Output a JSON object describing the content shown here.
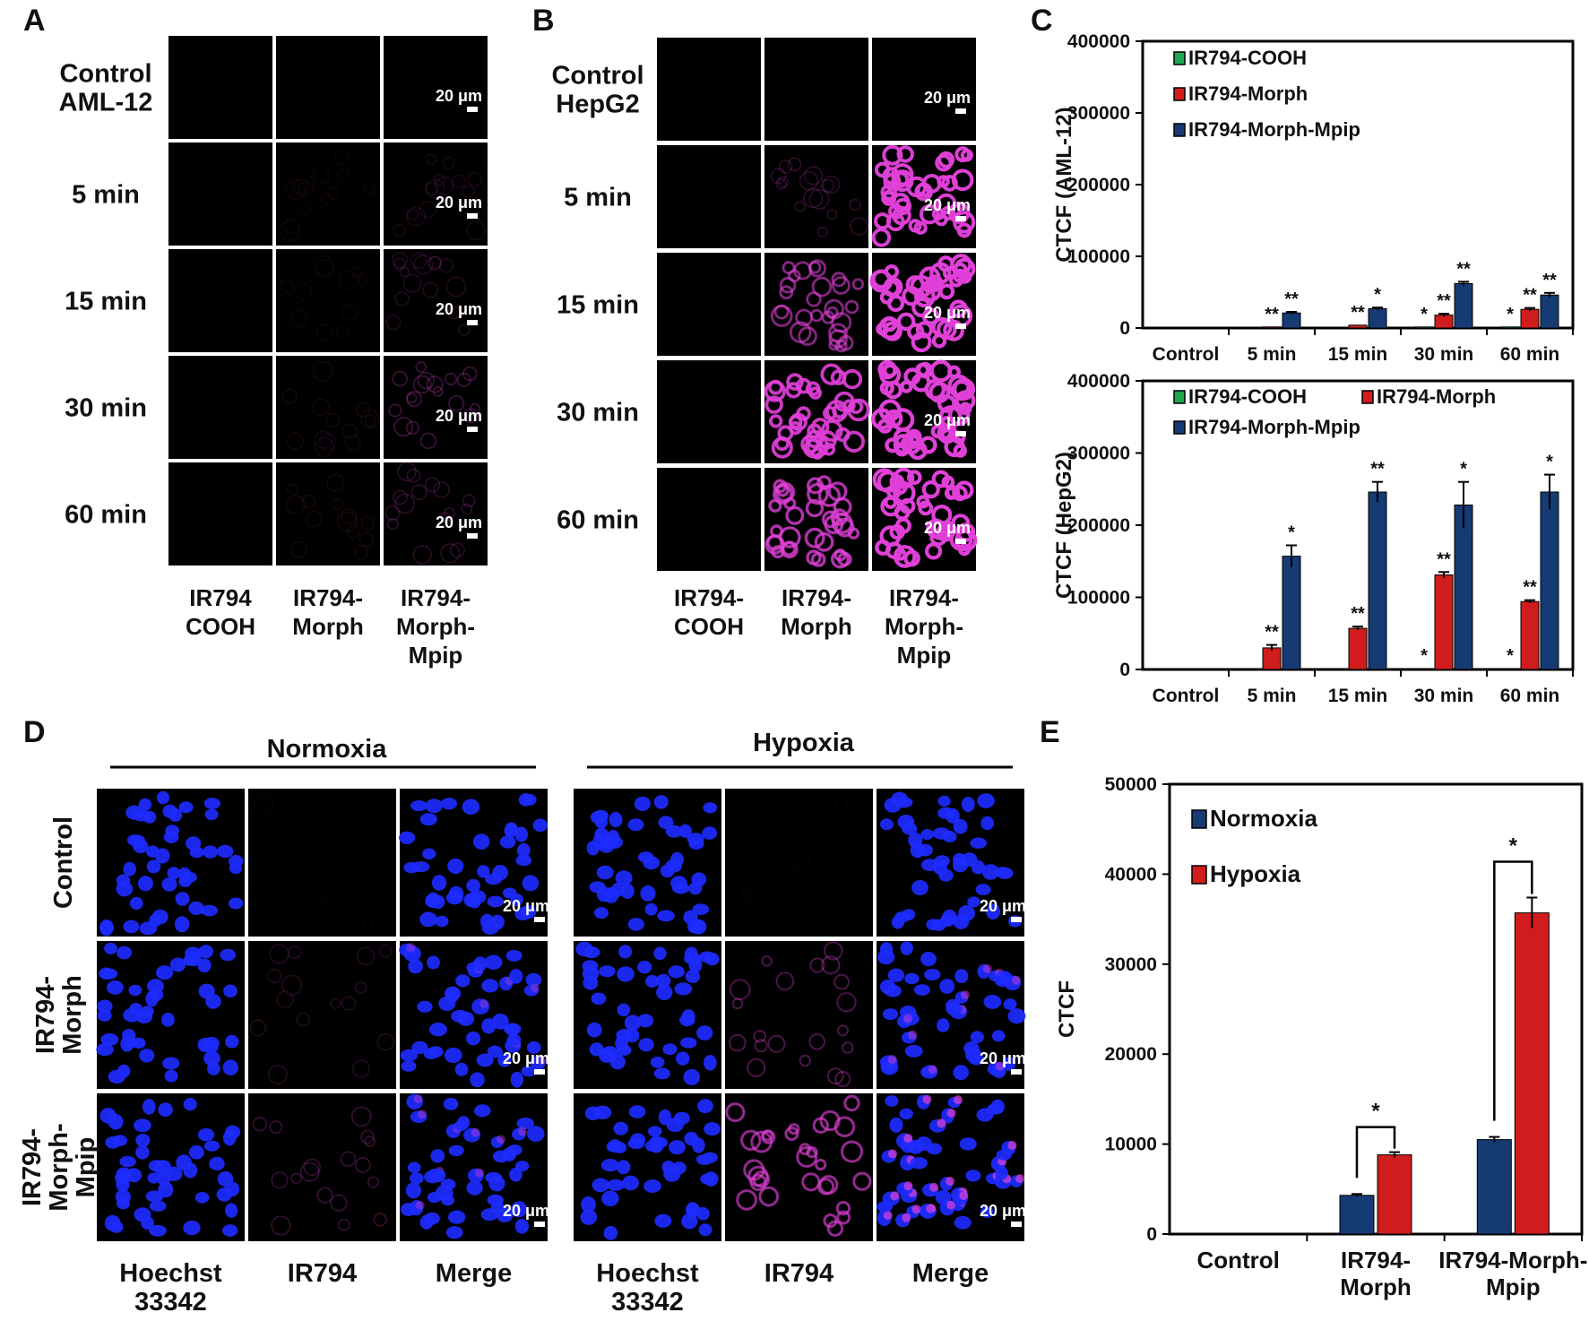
{
  "panels": {
    "A": {
      "letter": "A",
      "row_labels": [
        "Control AML-12",
        "5 min",
        "15 min",
        "30 min",
        "60 min"
      ],
      "row_label_lines": [
        [
          "Control",
          "AML-12"
        ],
        [
          "5 min"
        ],
        [
          "15 min"
        ],
        [
          "30 min"
        ],
        [
          "60 min"
        ]
      ],
      "col_label_lines": [
        [
          "IR794",
          "COOH"
        ],
        [
          "IR794-",
          "Morph"
        ],
        [
          "IR794-",
          "Morph-",
          "Mpip"
        ]
      ],
      "scale_bar": "20 μm",
      "intensity": [
        [
          0,
          0,
          0
        ],
        [
          0,
          0.06,
          0.1
        ],
        [
          0,
          0.05,
          0.12
        ],
        [
          0,
          0.08,
          0.2
        ],
        [
          0,
          0.08,
          0.15
        ]
      ]
    },
    "B": {
      "letter": "B",
      "row_label_lines": [
        [
          "Control",
          "HepG2"
        ],
        [
          "5 min"
        ],
        [
          "15 min"
        ],
        [
          "30 min"
        ],
        [
          "60 min"
        ]
      ],
      "col_label_lines": [
        [
          "IR794-",
          "COOH"
        ],
        [
          "IR794-",
          "Morph"
        ],
        [
          "IR794-",
          "Morph-",
          "Mpip"
        ]
      ],
      "scale_bar": "20 μm",
      "intensity": [
        [
          0,
          0,
          0
        ],
        [
          0,
          0.15,
          0.75
        ],
        [
          0,
          0.45,
          0.8
        ],
        [
          0,
          0.7,
          0.85
        ],
        [
          0,
          0.6,
          0.8
        ]
      ]
    },
    "C": {
      "letter": "C"
    },
    "D": {
      "letter": "D",
      "group_titles": [
        "Normoxia",
        "Hypoxia"
      ],
      "row_label_lines": [
        [
          "Control"
        ],
        [
          "IR794-",
          "Morph"
        ],
        [
          "IR794-",
          "Morph-",
          "Mpip"
        ]
      ],
      "col_label_lines": [
        [
          "Hoechst",
          "33342"
        ],
        [
          "IR794"
        ],
        [
          "Merge"
        ]
      ],
      "scale_bar": "20 μm",
      "ir_intensity": {
        "normoxia": [
          0.03,
          0.12,
          0.18
        ],
        "hypoxia": [
          0.03,
          0.25,
          0.5
        ]
      }
    },
    "E": {
      "letter": "E"
    }
  },
  "colors": {
    "cooh": "#1fa84d",
    "morph": "#d01c1c",
    "mpip": "#163a73",
    "normoxia": "#163a73",
    "hypoxia": "#d01c1c",
    "nuclei": "#1d2bff",
    "ir794": "#e040d8"
  },
  "chart_data": [
    {
      "id": "C-top",
      "type": "bar",
      "ylabel": "CTCF (AML-12)",
      "ylim": [
        0,
        400000
      ],
      "yticks": [
        "0",
        "100000",
        "200000",
        "300000",
        "400000"
      ],
      "categories": [
        "Control",
        "5 min",
        "15 min",
        "30 min",
        "60 min"
      ],
      "series": [
        {
          "name": "IR794-COOH",
          "values": [
            200,
            800,
            1000,
            1500,
            1500
          ],
          "errors": [
            0,
            0,
            0,
            0,
            0
          ],
          "stars": [
            "",
            "",
            "",
            "*",
            "*"
          ]
        },
        {
          "name": "IR794-Morph",
          "values": [
            300,
            1500,
            4000,
            18000,
            26000
          ],
          "errors": [
            0,
            0,
            0,
            2000,
            2000
          ],
          "stars": [
            "",
            "**",
            "**",
            "**",
            "**"
          ]
        },
        {
          "name": "IR794-Morph-Mpip",
          "values": [
            400,
            21000,
            27000,
            62000,
            46000
          ],
          "errors": [
            0,
            1500,
            1500,
            2500,
            3000
          ],
          "stars": [
            "",
            "**",
            "*",
            "**",
            "**"
          ]
        }
      ],
      "legend_rows": [
        [
          "IR794-COOH"
        ],
        [
          "IR794-Morph"
        ],
        [
          "IR794-Morph-Mpip"
        ]
      ]
    },
    {
      "id": "C-bottom",
      "type": "bar",
      "ylabel": "CTCF (HepG2)",
      "ylim": [
        0,
        400000
      ],
      "yticks": [
        "0",
        "100000",
        "200000",
        "300000",
        "400000"
      ],
      "categories": [
        "Control",
        "5 min",
        "15 min",
        "30 min",
        "60 min"
      ],
      "series": [
        {
          "name": "IR794-COOH",
          "values": [
            300,
            500,
            800,
            1000,
            1000
          ],
          "errors": [
            0,
            0,
            0,
            0,
            0
          ],
          "stars": [
            "",
            "",
            "",
            "*",
            "*"
          ]
        },
        {
          "name": "IR794-Morph",
          "values": [
            300,
            30000,
            57000,
            131000,
            94000
          ],
          "errors": [
            0,
            4000,
            2500,
            4000,
            2000
          ],
          "stars": [
            "",
            "**",
            "**",
            "**",
            "**"
          ]
        },
        {
          "name": "IR794-Morph-Mpip",
          "values": [
            300,
            157000,
            246000,
            228000,
            246000
          ],
          "errors": [
            0,
            15000,
            14000,
            32000,
            24000
          ],
          "stars": [
            "",
            "*",
            "**",
            "*",
            "*"
          ]
        }
      ],
      "legend_rows": [
        [
          "IR794-COOH",
          "IR794-Morph"
        ],
        [
          "IR794-Morph-Mpip"
        ]
      ]
    },
    {
      "id": "E",
      "type": "bar",
      "ylabel": "CTCF",
      "ylim": [
        0,
        50000
      ],
      "yticks": [
        "0",
        "10000",
        "20000",
        "30000",
        "40000",
        "50000"
      ],
      "categories": [
        "Control",
        "IR794-Morph",
        "IR794-Morph-Mpip"
      ],
      "category_label_lines": [
        [
          "Control"
        ],
        [
          "IR794-",
          "Morph"
        ],
        [
          "IR794-Morph-",
          "Mpip"
        ]
      ],
      "series": [
        {
          "name": "Normoxia",
          "values": [
            50,
            4300,
            10500
          ],
          "errors": [
            0,
            150,
            300
          ]
        },
        {
          "name": "Hypoxia",
          "values": [
            50,
            8800,
            35700
          ],
          "errors": [
            0,
            300,
            1700
          ]
        }
      ],
      "significance": [
        {
          "label": "*",
          "category_index": 1
        },
        {
          "label": "*",
          "category_index": 2
        }
      ]
    }
  ]
}
